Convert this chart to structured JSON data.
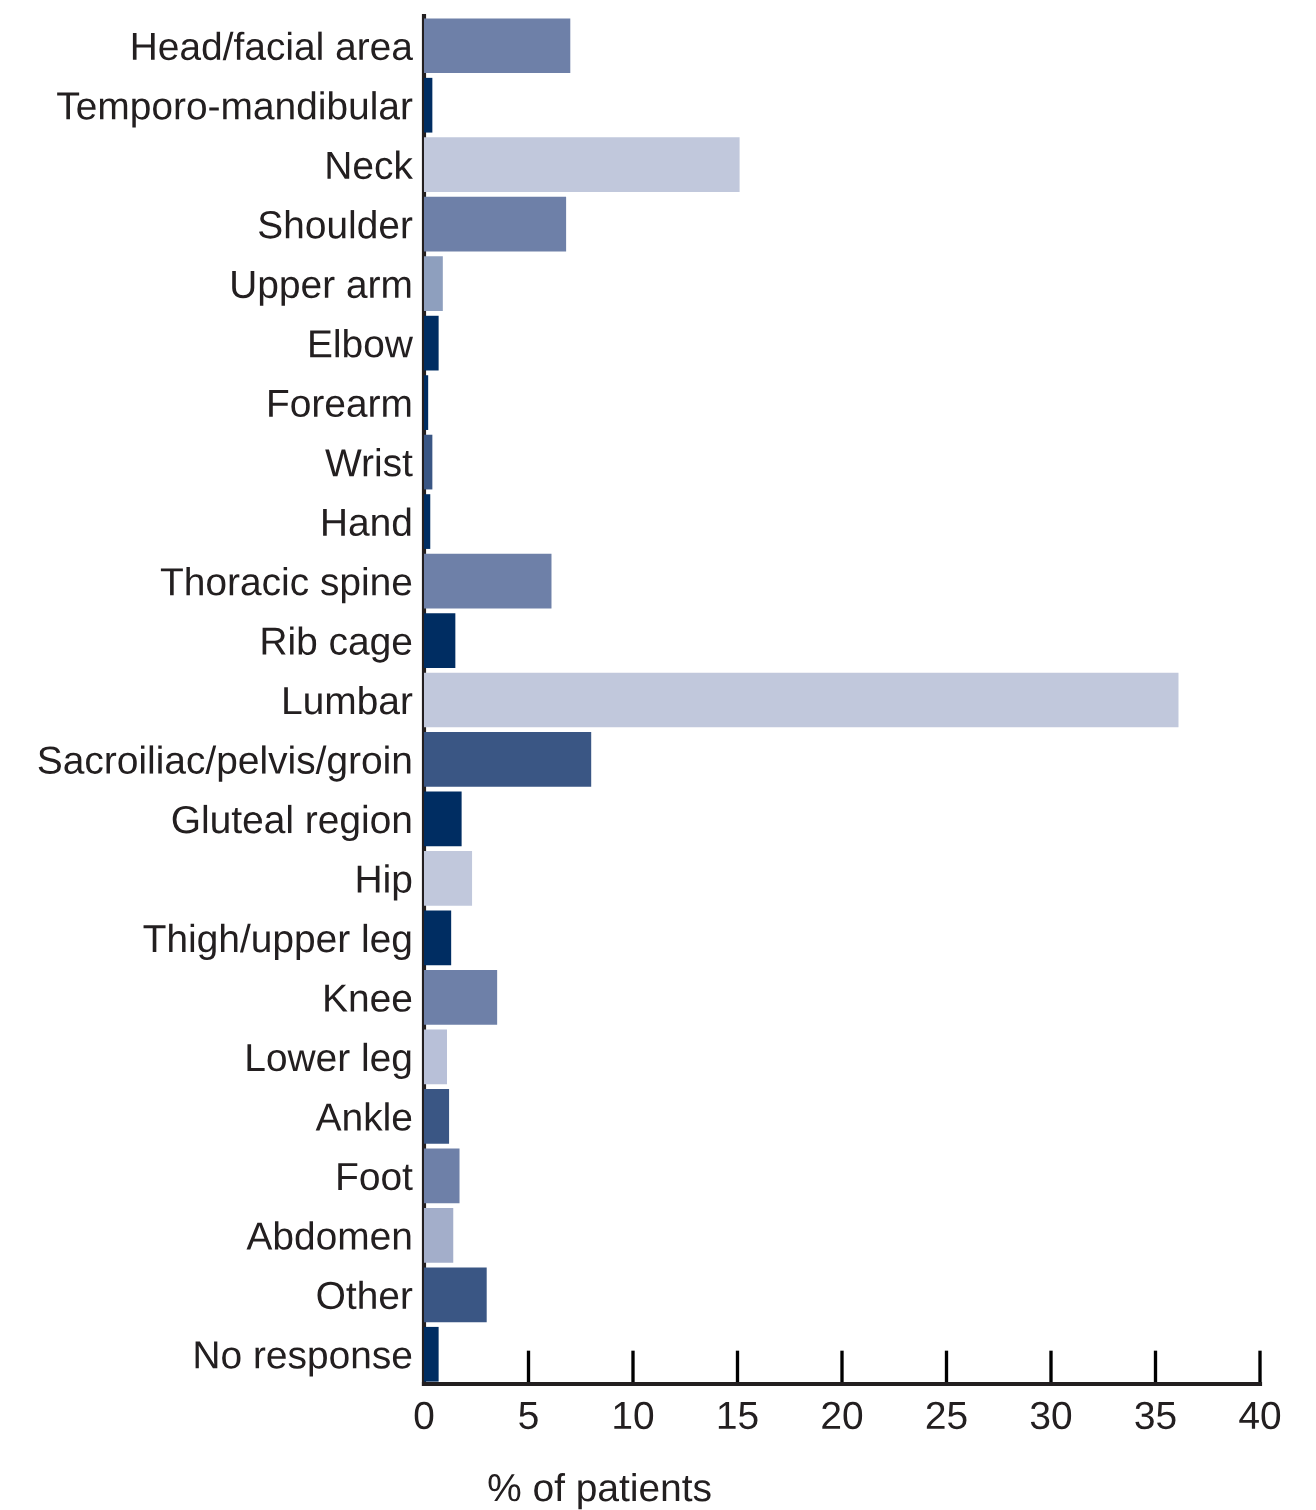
{
  "chart_data": {
    "type": "bar",
    "orientation": "horizontal",
    "xlabel": "% of patients",
    "categories": [
      "Head/facial area",
      "Temporo-mandibular",
      "Neck",
      "Shoulder",
      "Upper arm",
      "Elbow",
      "Forearm",
      "Wrist",
      "Hand",
      "Thoracic spine",
      "Rib cage",
      "Lumbar",
      "Sacroiliac/pelvis/groin",
      "Gluteal region",
      "Hip",
      "Thigh/upper leg",
      "Knee",
      "Lower leg",
      "Ankle",
      "Foot",
      "Abdomen",
      "Other",
      "No response"
    ],
    "values": [
      7.0,
      0.4,
      15.1,
      6.8,
      0.9,
      0.7,
      0.2,
      0.4,
      0.3,
      6.1,
      1.5,
      36.1,
      8.0,
      1.8,
      2.3,
      1.3,
      3.5,
      1.1,
      1.2,
      1.7,
      1.4,
      3.0,
      0.7
    ],
    "colors": [
      "#6e80a8",
      "#002d62",
      "#c1c8dc",
      "#6e80a8",
      "#8e9fbe",
      "#002d62",
      "#002d62",
      "#3a5684",
      "#002d62",
      "#6e80a8",
      "#002d62",
      "#c1c8dc",
      "#3a5684",
      "#002d62",
      "#c1c8dc",
      "#002d62",
      "#6e80a8",
      "#b8c0d8",
      "#3a5684",
      "#6e80a8",
      "#a3aeca",
      "#3a5684",
      "#002d62"
    ],
    "xlim": [
      0,
      40
    ],
    "xticks": [
      0,
      5,
      10,
      15,
      20,
      25,
      30,
      35,
      40
    ],
    "grid": false
  }
}
